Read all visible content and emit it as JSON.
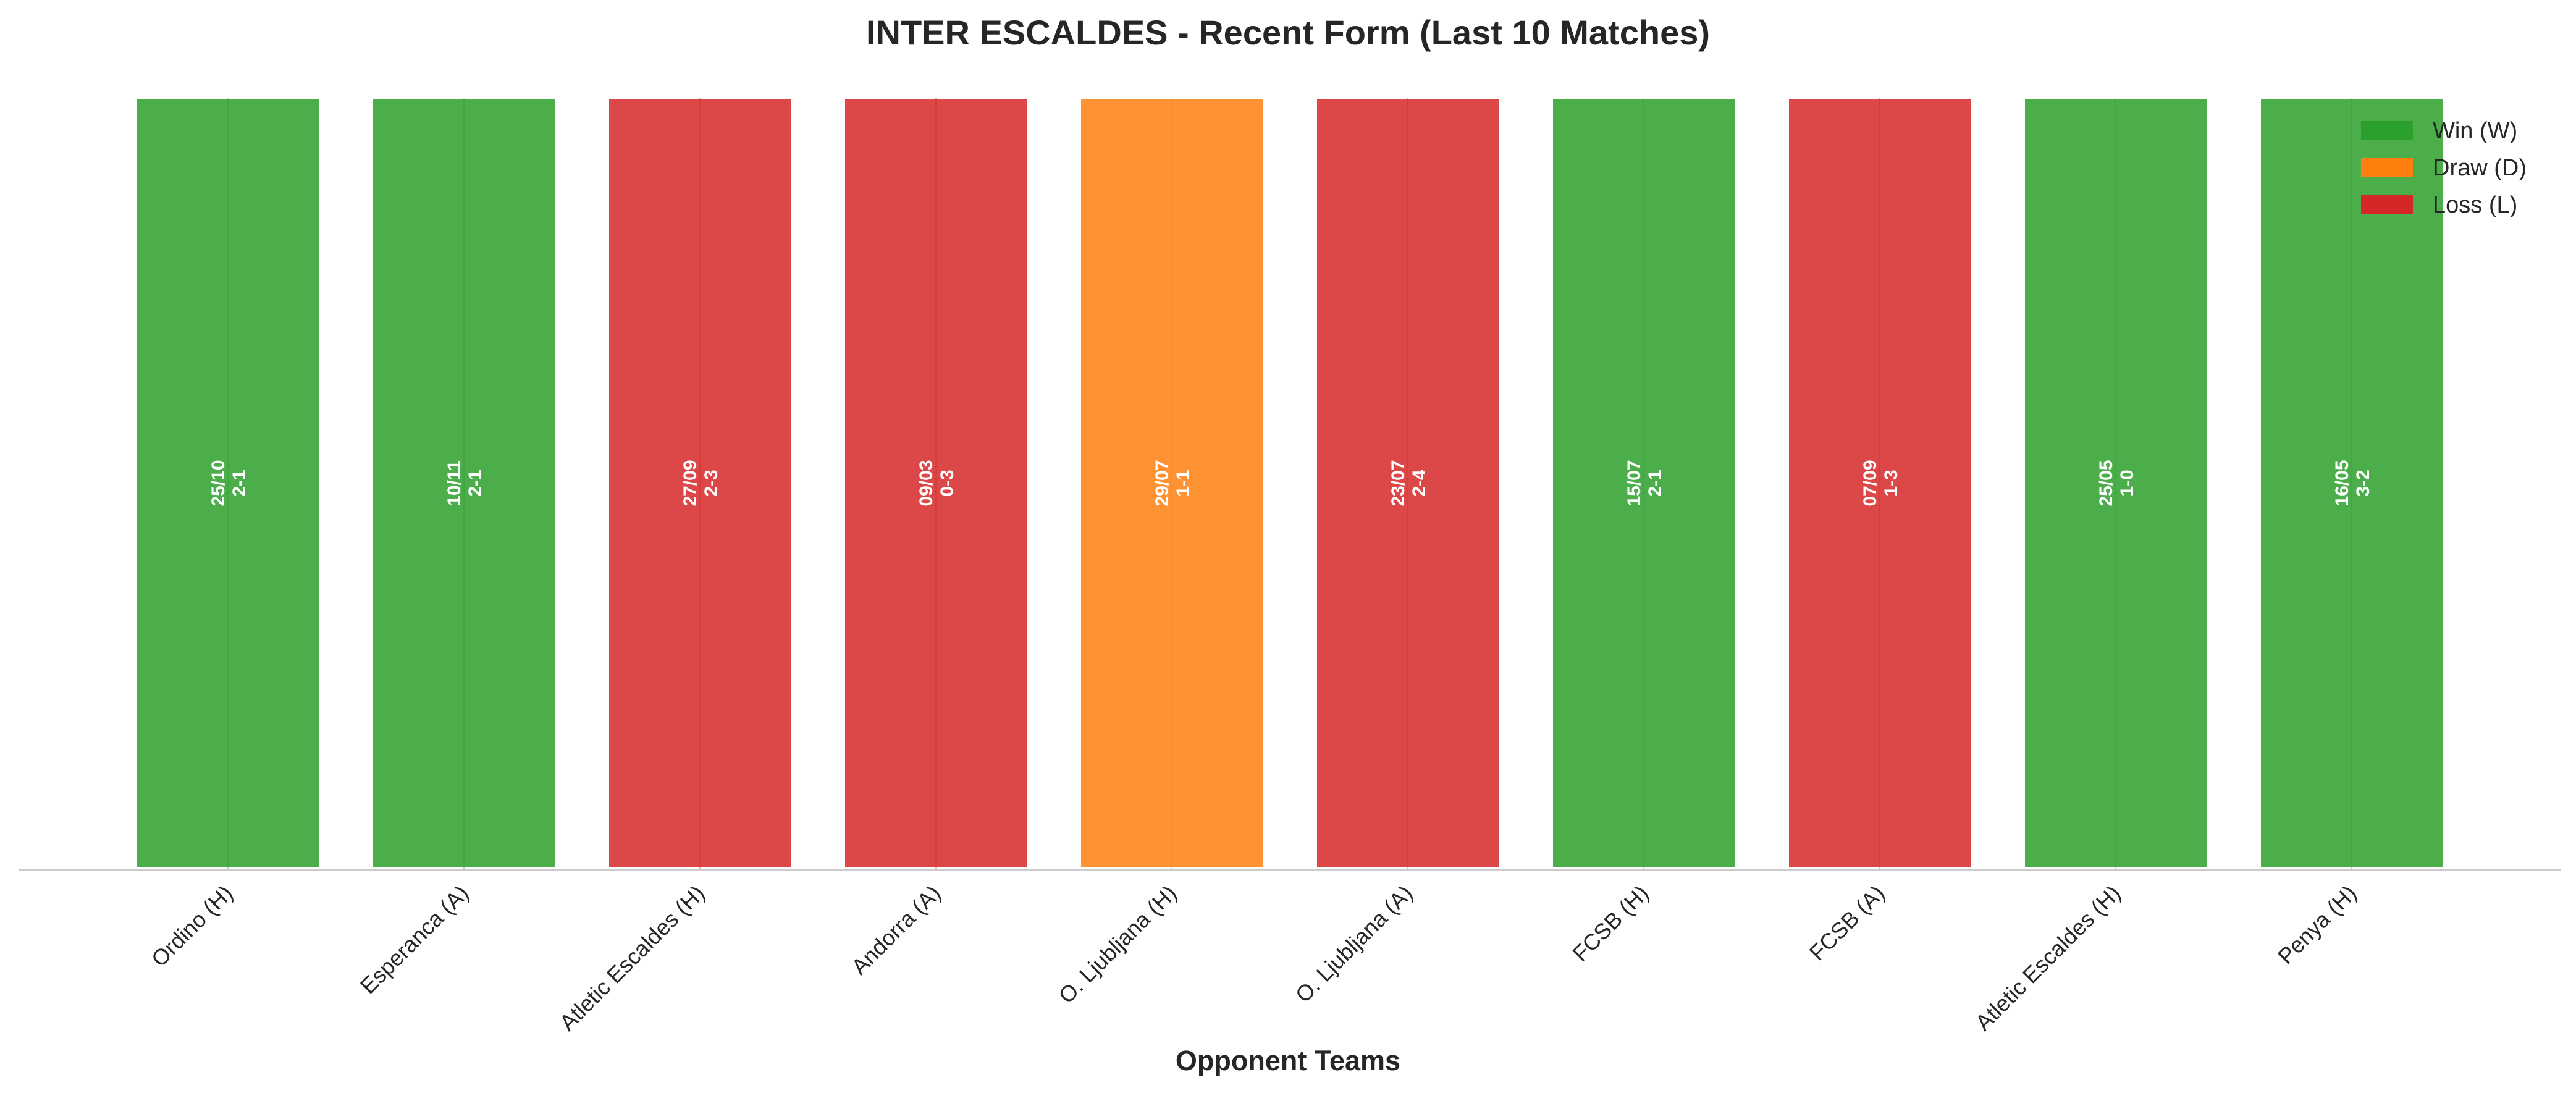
{
  "chart_data": {
    "type": "bar",
    "title": "INTER ESCALDES - Recent Form (Last 10 Matches)",
    "xlabel": "Opponent Teams",
    "ylabel": "",
    "grid": false,
    "legend_position": "top-right",
    "colors": {
      "W": "#2ca02c",
      "D": "#ff7f0e",
      "L": "#d62728"
    },
    "legend": [
      {
        "result": "W",
        "label": "Win (W)"
      },
      {
        "result": "D",
        "label": "Draw (D)"
      },
      {
        "result": "L",
        "label": "Loss (L)"
      }
    ],
    "categories": [
      "Ordino (H)",
      "Esperanca (A)",
      "Atletic Escaldes (H)",
      "Andorra (A)",
      "O. Ljubljana (H)",
      "O. Ljubljana (A)",
      "FCSB (H)",
      "FCSB (A)",
      "Atletic Escaldes (H)",
      "Penya (H)"
    ],
    "values": [
      1,
      1,
      1,
      1,
      1,
      1,
      1,
      1,
      1,
      1
    ],
    "matches": [
      {
        "opponent": "Ordino (H)",
        "date": "25/10",
        "score": "2-1",
        "result": "W"
      },
      {
        "opponent": "Esperanca (A)",
        "date": "10/11",
        "score": "2-1",
        "result": "W"
      },
      {
        "opponent": "Atletic Escaldes (H)",
        "date": "27/09",
        "score": "2-3",
        "result": "L"
      },
      {
        "opponent": "Andorra (A)",
        "date": "09/03",
        "score": "0-3",
        "result": "L"
      },
      {
        "opponent": "O. Ljubljana (H)",
        "date": "29/07",
        "score": "1-1",
        "result": "D"
      },
      {
        "opponent": "O. Ljubljana (A)",
        "date": "23/07",
        "score": "2-4",
        "result": "L"
      },
      {
        "opponent": "FCSB (H)",
        "date": "15/07",
        "score": "2-1",
        "result": "W"
      },
      {
        "opponent": "FCSB (A)",
        "date": "07/09",
        "score": "1-3",
        "result": "L"
      },
      {
        "opponent": "Atletic Escaldes (H)",
        "date": "25/05",
        "score": "1-0",
        "result": "W"
      },
      {
        "opponent": "Penya (H)",
        "date": "16/05",
        "score": "3-2",
        "result": "W"
      }
    ]
  }
}
